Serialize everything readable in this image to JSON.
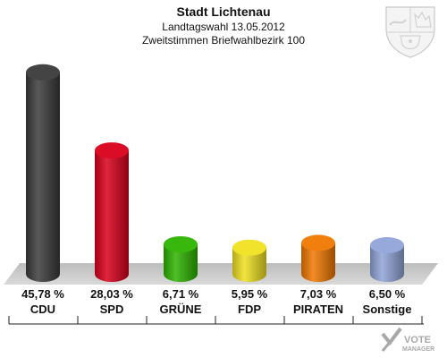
{
  "chart_data": {
    "type": "bar",
    "title": "Stadt Lichtenau",
    "subtitle": "Landtagswahl 13.05.2012",
    "subtitle2": "Zweitstimmen Briefwahlbezirk 100",
    "categories": [
      "CDU",
      "SPD",
      "GRÜNE",
      "FDP",
      "PIRATEN",
      "Sonstige"
    ],
    "values": [
      45.78,
      28.03,
      6.71,
      5.95,
      7.03,
      6.5
    ],
    "value_labels": [
      "45,78 %",
      "28,03 %",
      "6,71 %",
      "5,95 %",
      "7,03 %",
      "6,50 %"
    ],
    "colors": [
      "#3a3a3a",
      "#d9001b",
      "#2db400",
      "#f0e020",
      "#f07800",
      "#90a4d8"
    ],
    "ylim": [
      0,
      50
    ],
    "grid": false,
    "legend": "none"
  },
  "branding": {
    "watermark": "VOTE MANAGER",
    "emblem": "nrw-coat-of-arms-icon"
  }
}
